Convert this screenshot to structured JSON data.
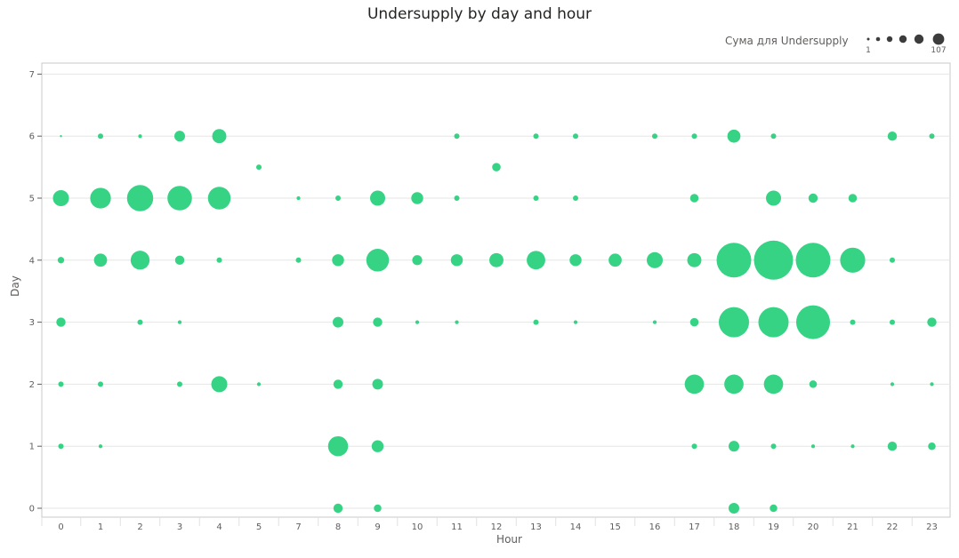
{
  "chart_data": {
    "type": "scatter",
    "title": "Undersupply by day and hour",
    "xlabel": "Hour",
    "ylabel": "Day",
    "x_ticks": [
      "0",
      "1",
      "2",
      "3",
      "4",
      "5",
      "7",
      "8",
      "9",
      "10",
      "11",
      "12",
      "13",
      "14",
      "15",
      "16",
      "17",
      "18",
      "19",
      "20",
      "21",
      "22",
      "23"
    ],
    "y_ticks": [
      "0",
      "1",
      "2",
      "3",
      "4",
      "5",
      "6",
      "7"
    ],
    "ylim": [
      0,
      7
    ],
    "grid": true,
    "legend": {
      "title": "Сума для Undersupply",
      "min_label": "1",
      "max_label": "107",
      "placement": "top-right"
    },
    "size_range": [
      1,
      107
    ],
    "color": "#36d385",
    "points": [
      {
        "x": "0",
        "y": 6,
        "v": 0
      },
      {
        "x": "1",
        "y": 6,
        "v": 2
      },
      {
        "x": "2",
        "y": 6,
        "v": 1
      },
      {
        "x": "3",
        "y": 6,
        "v": 8
      },
      {
        "x": "4",
        "y": 6,
        "v": 14
      },
      {
        "x": "11",
        "y": 6,
        "v": 2
      },
      {
        "x": "13",
        "y": 6,
        "v": 2
      },
      {
        "x": "14",
        "y": 6,
        "v": 2
      },
      {
        "x": "16",
        "y": 6,
        "v": 2
      },
      {
        "x": "17",
        "y": 6,
        "v": 2
      },
      {
        "x": "18",
        "y": 6,
        "v": 12
      },
      {
        "x": "19",
        "y": 6,
        "v": 2
      },
      {
        "x": "22",
        "y": 6,
        "v": 6
      },
      {
        "x": "23",
        "y": 6,
        "v": 2
      },
      {
        "x": "5",
        "y": 5.5,
        "v": 2
      },
      {
        "x": "12",
        "y": 5.5,
        "v": 5
      },
      {
        "x": "0",
        "y": 5,
        "v": 18
      },
      {
        "x": "1",
        "y": 5,
        "v": 30
      },
      {
        "x": "2",
        "y": 5,
        "v": 48
      },
      {
        "x": "3",
        "y": 5,
        "v": 42
      },
      {
        "x": "4",
        "y": 5,
        "v": 36
      },
      {
        "x": "7",
        "y": 5,
        "v": 1
      },
      {
        "x": "8",
        "y": 5,
        "v": 2
      },
      {
        "x": "9",
        "y": 5,
        "v": 16
      },
      {
        "x": "10",
        "y": 5,
        "v": 10
      },
      {
        "x": "11",
        "y": 5,
        "v": 2
      },
      {
        "x": "13",
        "y": 5,
        "v": 2
      },
      {
        "x": "14",
        "y": 5,
        "v": 2
      },
      {
        "x": "17",
        "y": 5,
        "v": 5
      },
      {
        "x": "19",
        "y": 5,
        "v": 16
      },
      {
        "x": "20",
        "y": 5,
        "v": 6
      },
      {
        "x": "21",
        "y": 5,
        "v": 5
      },
      {
        "x": "0",
        "y": 4,
        "v": 3
      },
      {
        "x": "1",
        "y": 4,
        "v": 12
      },
      {
        "x": "2",
        "y": 4,
        "v": 25
      },
      {
        "x": "3",
        "y": 4,
        "v": 6
      },
      {
        "x": "4",
        "y": 4,
        "v": 2
      },
      {
        "x": "7",
        "y": 4,
        "v": 2
      },
      {
        "x": "8",
        "y": 4,
        "v": 10
      },
      {
        "x": "9",
        "y": 4,
        "v": 36
      },
      {
        "x": "10",
        "y": 4,
        "v": 7
      },
      {
        "x": "11",
        "y": 4,
        "v": 10
      },
      {
        "x": "12",
        "y": 4,
        "v": 14
      },
      {
        "x": "13",
        "y": 4,
        "v": 24
      },
      {
        "x": "14",
        "y": 4,
        "v": 10
      },
      {
        "x": "15",
        "y": 4,
        "v": 12
      },
      {
        "x": "16",
        "y": 4,
        "v": 18
      },
      {
        "x": "17",
        "y": 4,
        "v": 14
      },
      {
        "x": "18",
        "y": 4,
        "v": 84
      },
      {
        "x": "19",
        "y": 4,
        "v": 107
      },
      {
        "x": "20",
        "y": 4,
        "v": 84
      },
      {
        "x": "21",
        "y": 4,
        "v": 44
      },
      {
        "x": "22",
        "y": 4,
        "v": 2
      },
      {
        "x": "0",
        "y": 3,
        "v": 6
      },
      {
        "x": "2",
        "y": 3,
        "v": 2
      },
      {
        "x": "3",
        "y": 3,
        "v": 1
      },
      {
        "x": "8",
        "y": 3,
        "v": 8
      },
      {
        "x": "9",
        "y": 3,
        "v": 6
      },
      {
        "x": "10",
        "y": 3,
        "v": 1
      },
      {
        "x": "11",
        "y": 3,
        "v": 1
      },
      {
        "x": "13",
        "y": 3,
        "v": 2
      },
      {
        "x": "14",
        "y": 3,
        "v": 1
      },
      {
        "x": "16",
        "y": 3,
        "v": 1
      },
      {
        "x": "17",
        "y": 3,
        "v": 5
      },
      {
        "x": "18",
        "y": 3,
        "v": 64
      },
      {
        "x": "19",
        "y": 3,
        "v": 64
      },
      {
        "x": "20",
        "y": 3,
        "v": 80
      },
      {
        "x": "21",
        "y": 3,
        "v": 2
      },
      {
        "x": "22",
        "y": 3,
        "v": 2
      },
      {
        "x": "23",
        "y": 3,
        "v": 6
      },
      {
        "x": "0",
        "y": 2,
        "v": 2
      },
      {
        "x": "1",
        "y": 2,
        "v": 2
      },
      {
        "x": "3",
        "y": 2,
        "v": 2
      },
      {
        "x": "4",
        "y": 2,
        "v": 18
      },
      {
        "x": "5",
        "y": 2,
        "v": 1
      },
      {
        "x": "8",
        "y": 2,
        "v": 6
      },
      {
        "x": "9",
        "y": 2,
        "v": 8
      },
      {
        "x": "17",
        "y": 2,
        "v": 26
      },
      {
        "x": "18",
        "y": 2,
        "v": 26
      },
      {
        "x": "19",
        "y": 2,
        "v": 26
      },
      {
        "x": "20",
        "y": 2,
        "v": 4
      },
      {
        "x": "22",
        "y": 2,
        "v": 1
      },
      {
        "x": "23",
        "y": 2,
        "v": 1
      },
      {
        "x": "0",
        "y": 1,
        "v": 2
      },
      {
        "x": "1",
        "y": 1,
        "v": 1
      },
      {
        "x": "8",
        "y": 1,
        "v": 28
      },
      {
        "x": "9",
        "y": 1,
        "v": 10
      },
      {
        "x": "17",
        "y": 1,
        "v": 2
      },
      {
        "x": "18",
        "y": 1,
        "v": 8
      },
      {
        "x": "19",
        "y": 1,
        "v": 2
      },
      {
        "x": "20",
        "y": 1,
        "v": 1
      },
      {
        "x": "21",
        "y": 1,
        "v": 1
      },
      {
        "x": "22",
        "y": 1,
        "v": 6
      },
      {
        "x": "23",
        "y": 1,
        "v": 4
      },
      {
        "x": "8",
        "y": 0,
        "v": 6
      },
      {
        "x": "9",
        "y": 0,
        "v": 4
      },
      {
        "x": "18",
        "y": 0,
        "v": 8
      },
      {
        "x": "19",
        "y": 0,
        "v": 4
      }
    ]
  }
}
